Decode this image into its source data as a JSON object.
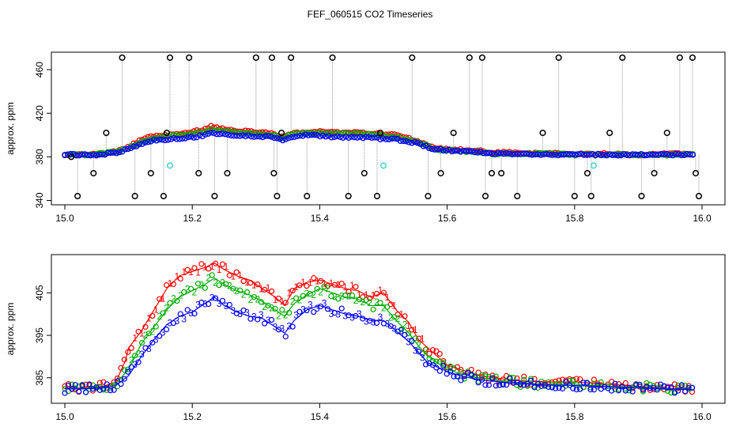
{
  "figure_title": "FEF_060515  CO2 Timeseries",
  "chart_data": [
    {
      "type": "scatter",
      "title": "",
      "xlabel": "",
      "ylabel": "approx. ppm",
      "xlim": [
        15.0,
        16.0
      ],
      "ylim": [
        336,
        476
      ],
      "x_ticks": [
        "15.0",
        "15.2",
        "15.4",
        "15.6",
        "15.8",
        "16.0"
      ],
      "y_ticks": [
        "340",
        "380",
        "420",
        "460"
      ],
      "grid": false,
      "colors": {
        "s1": "#ff0000",
        "s2": "#00aa00",
        "s3": "#0000ff",
        "outlier": "#000000",
        "missing": "#33cccc",
        "line": "#999999"
      },
      "main_series": {
        "x": [
          15.0,
          15.04,
          15.06,
          15.08,
          15.1,
          15.12,
          15.14,
          15.16,
          15.18,
          15.2,
          15.22,
          15.23,
          15.25,
          15.27,
          15.3,
          15.33,
          15.34,
          15.36,
          15.38,
          15.4,
          15.43,
          15.46,
          15.49,
          15.52,
          15.55,
          15.57,
          15.58,
          15.6,
          15.63,
          15.66,
          15.67,
          15.7,
          15.75,
          15.8,
          15.83,
          15.84,
          15.88,
          15.92,
          15.96,
          15.99
        ],
        "s1": [
          382,
          382,
          383,
          385,
          389,
          396,
          399,
          400,
          401,
          403,
          405,
          408,
          405,
          404,
          403,
          401,
          398,
          402,
          403,
          403,
          402,
          402,
          401,
          400,
          395,
          391,
          388,
          387,
          386,
          385,
          384,
          384,
          383,
          383,
          382,
          383,
          382,
          382,
          383,
          382
        ],
        "s2": [
          382,
          382,
          383,
          385,
          388,
          394,
          397,
          399,
          400,
          401,
          403,
          405,
          404,
          402,
          401,
          400,
          397,
          401,
          402,
          402,
          401,
          401,
          400,
          398,
          394,
          390,
          387,
          386,
          385,
          384,
          383,
          383,
          383,
          382,
          382,
          382,
          382,
          382,
          382,
          382
        ],
        "s3": [
          382,
          382,
          382,
          384,
          387,
          392,
          395,
          396,
          397,
          398,
          400,
          402,
          401,
          399,
          399,
          398,
          395,
          399,
          400,
          399,
          398,
          398,
          397,
          396,
          393,
          389,
          387,
          386,
          385,
          384,
          383,
          383,
          382,
          382,
          382,
          382,
          382,
          382,
          382,
          382
        ]
      },
      "outliers_x": [
        15.01,
        15.02,
        15.045,
        15.065,
        15.09,
        15.11,
        15.135,
        15.155,
        15.16,
        15.165,
        15.195,
        15.21,
        15.235,
        15.255,
        15.3,
        15.325,
        15.328,
        15.333,
        15.34,
        15.355,
        15.38,
        15.42,
        15.445,
        15.47,
        15.49,
        15.495,
        15.545,
        15.57,
        15.59,
        15.61,
        15.635,
        15.655,
        15.66,
        15.67,
        15.685,
        15.71,
        15.75,
        15.775,
        15.8,
        15.82,
        15.826,
        15.855,
        15.875,
        15.905,
        15.925,
        15.945,
        15.965,
        15.985,
        15.99,
        15.995
      ],
      "outliers_y": [
        380,
        344,
        365,
        402,
        471,
        344,
        365,
        344,
        402,
        471,
        471,
        365,
        344,
        365,
        471,
        471,
        365,
        344,
        402,
        471,
        344,
        471,
        344,
        365,
        344,
        402,
        471,
        344,
        365,
        402,
        471,
        471,
        344,
        365,
        365,
        344,
        402,
        471,
        344,
        365,
        344,
        402,
        471,
        344,
        365,
        402,
        471,
        471,
        365,
        344
      ],
      "missing_x": [
        15.165,
        15.5,
        15.83
      ],
      "missing_y": [
        372,
        372,
        372
      ]
    },
    {
      "type": "line",
      "title": "",
      "xlabel": "",
      "ylabel": "approx. ppm",
      "xlim": [
        15.0,
        16.0
      ],
      "ylim": [
        379,
        414
      ],
      "x_ticks": [
        "15.0",
        "15.2",
        "15.4",
        "15.6",
        "15.8",
        "16.0"
      ],
      "y_ticks": [
        "385",
        "395",
        "405"
      ],
      "grid": false,
      "series": [
        {
          "name": "1",
          "color": "#ff0000",
          "x": [
            15.0,
            15.03,
            15.06,
            15.08,
            15.095,
            15.1,
            15.12,
            15.14,
            15.16,
            15.18,
            15.2,
            15.22,
            15.235,
            15.25,
            15.27,
            15.29,
            15.31,
            15.33,
            15.345,
            15.36,
            15.38,
            15.4,
            15.42,
            15.44,
            15.46,
            15.48,
            15.5,
            15.52,
            15.54,
            15.555,
            15.57,
            15.585,
            15.6,
            15.62,
            15.65,
            15.7,
            15.75,
            15.8,
            15.85,
            15.9,
            15.95,
            15.98
          ],
          "y": [
            382.6,
            382.6,
            383.0,
            384.0,
            389.0,
            392.0,
            396.0,
            401.0,
            406.0,
            409.0,
            410.0,
            411.0,
            412.0,
            410.5,
            409.0,
            408.0,
            406.0,
            404.0,
            402.0,
            406.0,
            407.5,
            408.0,
            407.0,
            406.0,
            405.5,
            404.0,
            405.0,
            401.0,
            398.0,
            394.0,
            392.0,
            390.0,
            388.0,
            387.0,
            385.5,
            384.5,
            384.0,
            384.0,
            383.5,
            383.0,
            382.5,
            382.5
          ]
        },
        {
          "name": "2",
          "color": "#00aa00",
          "x": [
            15.0,
            15.03,
            15.06,
            15.08,
            15.1,
            15.12,
            15.14,
            15.16,
            15.18,
            15.2,
            15.22,
            15.235,
            15.25,
            15.27,
            15.29,
            15.31,
            15.33,
            15.345,
            15.36,
            15.38,
            15.4,
            15.42,
            15.44,
            15.46,
            15.48,
            15.5,
            15.52,
            15.54,
            15.555,
            15.57,
            15.585,
            15.6,
            15.62,
            15.65,
            15.7,
            15.75,
            15.8,
            15.85,
            15.9,
            15.95,
            15.98
          ],
          "y": [
            382.5,
            382.5,
            382.8,
            383.6,
            387.0,
            393.0,
            397.0,
            401.0,
            404.0,
            405.5,
            407.0,
            408.5,
            407.0,
            405.5,
            404.5,
            403.0,
            401.0,
            399.5,
            402.5,
            404.5,
            406.0,
            405.0,
            404.0,
            403.5,
            402.0,
            402.0,
            398.5,
            395.5,
            392.5,
            390.0,
            388.5,
            387.0,
            386.0,
            385.0,
            384.0,
            383.5,
            383.5,
            383.0,
            382.8,
            382.4,
            382.4
          ]
        },
        {
          "name": "3",
          "color": "#0000ff",
          "x": [
            15.0,
            15.03,
            15.06,
            15.08,
            15.1,
            15.12,
            15.14,
            15.16,
            15.18,
            15.2,
            15.22,
            15.235,
            15.25,
            15.27,
            15.29,
            15.31,
            15.33,
            15.345,
            15.36,
            15.38,
            15.4,
            15.42,
            15.44,
            15.46,
            15.48,
            15.5,
            15.52,
            15.54,
            15.555,
            15.57,
            15.585,
            15.6,
            15.62,
            15.65,
            15.7,
            15.75,
            15.8,
            15.85,
            15.9,
            15.95,
            15.98
          ],
          "y": [
            382.4,
            382.4,
            382.6,
            383.2,
            385.5,
            390.0,
            394.0,
            397.5,
            399.5,
            400.5,
            402.5,
            404.0,
            402.0,
            400.5,
            399.5,
            399.0,
            397.0,
            395.5,
            398.5,
            401.0,
            402.0,
            401.0,
            400.0,
            399.5,
            398.5,
            398.5,
            396.0,
            393.5,
            391.0,
            388.5,
            387.5,
            386.5,
            385.5,
            384.5,
            383.8,
            383.3,
            383.2,
            382.9,
            382.6,
            382.3,
            382.3
          ]
        }
      ]
    }
  ]
}
